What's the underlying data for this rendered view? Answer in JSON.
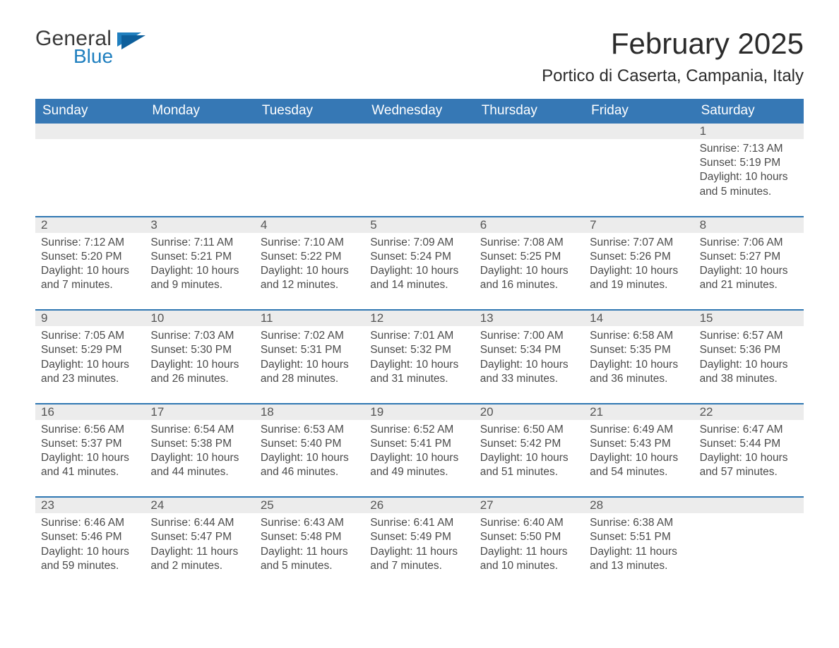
{
  "logo": {
    "line1": "General",
    "line2": "Blue",
    "mark_color": "#1f7fbf"
  },
  "title": "February 2025",
  "subtitle": "Portico di Caserta, Campania, Italy",
  "colors": {
    "header_blue": "#3678b5",
    "accent_blue": "#1f7fbf",
    "daynum_bg": "#ececec",
    "row_divider": "#2f77b2",
    "text_dark": "#333333",
    "text_gray": "#4a4a4a"
  },
  "typography": {
    "title_fontsize": 42,
    "subtitle_fontsize": 24,
    "weekday_fontsize": 19,
    "daynum_fontsize": 17,
    "body_fontsize": 15.5,
    "font_family": "Segoe UI"
  },
  "calendar": {
    "type": "month-grid",
    "columns": 7,
    "rows": 5,
    "weekdays": [
      "Sunday",
      "Monday",
      "Tuesday",
      "Wednesday",
      "Thursday",
      "Friday",
      "Saturday"
    ],
    "days": [
      {
        "n": "",
        "empty": true
      },
      {
        "n": "",
        "empty": true
      },
      {
        "n": "",
        "empty": true
      },
      {
        "n": "",
        "empty": true
      },
      {
        "n": "",
        "empty": true
      },
      {
        "n": "",
        "empty": true
      },
      {
        "n": "1",
        "sunrise": "7:13 AM",
        "sunset": "5:19 PM",
        "daylight": "10 hours and 5 minutes."
      },
      {
        "n": "2",
        "sunrise": "7:12 AM",
        "sunset": "5:20 PM",
        "daylight": "10 hours and 7 minutes."
      },
      {
        "n": "3",
        "sunrise": "7:11 AM",
        "sunset": "5:21 PM",
        "daylight": "10 hours and 9 minutes."
      },
      {
        "n": "4",
        "sunrise": "7:10 AM",
        "sunset": "5:22 PM",
        "daylight": "10 hours and 12 minutes."
      },
      {
        "n": "5",
        "sunrise": "7:09 AM",
        "sunset": "5:24 PM",
        "daylight": "10 hours and 14 minutes."
      },
      {
        "n": "6",
        "sunrise": "7:08 AM",
        "sunset": "5:25 PM",
        "daylight": "10 hours and 16 minutes."
      },
      {
        "n": "7",
        "sunrise": "7:07 AM",
        "sunset": "5:26 PM",
        "daylight": "10 hours and 19 minutes."
      },
      {
        "n": "8",
        "sunrise": "7:06 AM",
        "sunset": "5:27 PM",
        "daylight": "10 hours and 21 minutes."
      },
      {
        "n": "9",
        "sunrise": "7:05 AM",
        "sunset": "5:29 PM",
        "daylight": "10 hours and 23 minutes."
      },
      {
        "n": "10",
        "sunrise": "7:03 AM",
        "sunset": "5:30 PM",
        "daylight": "10 hours and 26 minutes."
      },
      {
        "n": "11",
        "sunrise": "7:02 AM",
        "sunset": "5:31 PM",
        "daylight": "10 hours and 28 minutes."
      },
      {
        "n": "12",
        "sunrise": "7:01 AM",
        "sunset": "5:32 PM",
        "daylight": "10 hours and 31 minutes."
      },
      {
        "n": "13",
        "sunrise": "7:00 AM",
        "sunset": "5:34 PM",
        "daylight": "10 hours and 33 minutes."
      },
      {
        "n": "14",
        "sunrise": "6:58 AM",
        "sunset": "5:35 PM",
        "daylight": "10 hours and 36 minutes."
      },
      {
        "n": "15",
        "sunrise": "6:57 AM",
        "sunset": "5:36 PM",
        "daylight": "10 hours and 38 minutes."
      },
      {
        "n": "16",
        "sunrise": "6:56 AM",
        "sunset": "5:37 PM",
        "daylight": "10 hours and 41 minutes."
      },
      {
        "n": "17",
        "sunrise": "6:54 AM",
        "sunset": "5:38 PM",
        "daylight": "10 hours and 44 minutes."
      },
      {
        "n": "18",
        "sunrise": "6:53 AM",
        "sunset": "5:40 PM",
        "daylight": "10 hours and 46 minutes."
      },
      {
        "n": "19",
        "sunrise": "6:52 AM",
        "sunset": "5:41 PM",
        "daylight": "10 hours and 49 minutes."
      },
      {
        "n": "20",
        "sunrise": "6:50 AM",
        "sunset": "5:42 PM",
        "daylight": "10 hours and 51 minutes."
      },
      {
        "n": "21",
        "sunrise": "6:49 AM",
        "sunset": "5:43 PM",
        "daylight": "10 hours and 54 minutes."
      },
      {
        "n": "22",
        "sunrise": "6:47 AM",
        "sunset": "5:44 PM",
        "daylight": "10 hours and 57 minutes."
      },
      {
        "n": "23",
        "sunrise": "6:46 AM",
        "sunset": "5:46 PM",
        "daylight": "10 hours and 59 minutes."
      },
      {
        "n": "24",
        "sunrise": "6:44 AM",
        "sunset": "5:47 PM",
        "daylight": "11 hours and 2 minutes."
      },
      {
        "n": "25",
        "sunrise": "6:43 AM",
        "sunset": "5:48 PM",
        "daylight": "11 hours and 5 minutes."
      },
      {
        "n": "26",
        "sunrise": "6:41 AM",
        "sunset": "5:49 PM",
        "daylight": "11 hours and 7 minutes."
      },
      {
        "n": "27",
        "sunrise": "6:40 AM",
        "sunset": "5:50 PM",
        "daylight": "11 hours and 10 minutes."
      },
      {
        "n": "28",
        "sunrise": "6:38 AM",
        "sunset": "5:51 PM",
        "daylight": "11 hours and 13 minutes."
      },
      {
        "n": "",
        "empty": true
      }
    ],
    "labels": {
      "sunrise_prefix": "Sunrise: ",
      "sunset_prefix": "Sunset: ",
      "daylight_prefix": "Daylight: "
    }
  }
}
